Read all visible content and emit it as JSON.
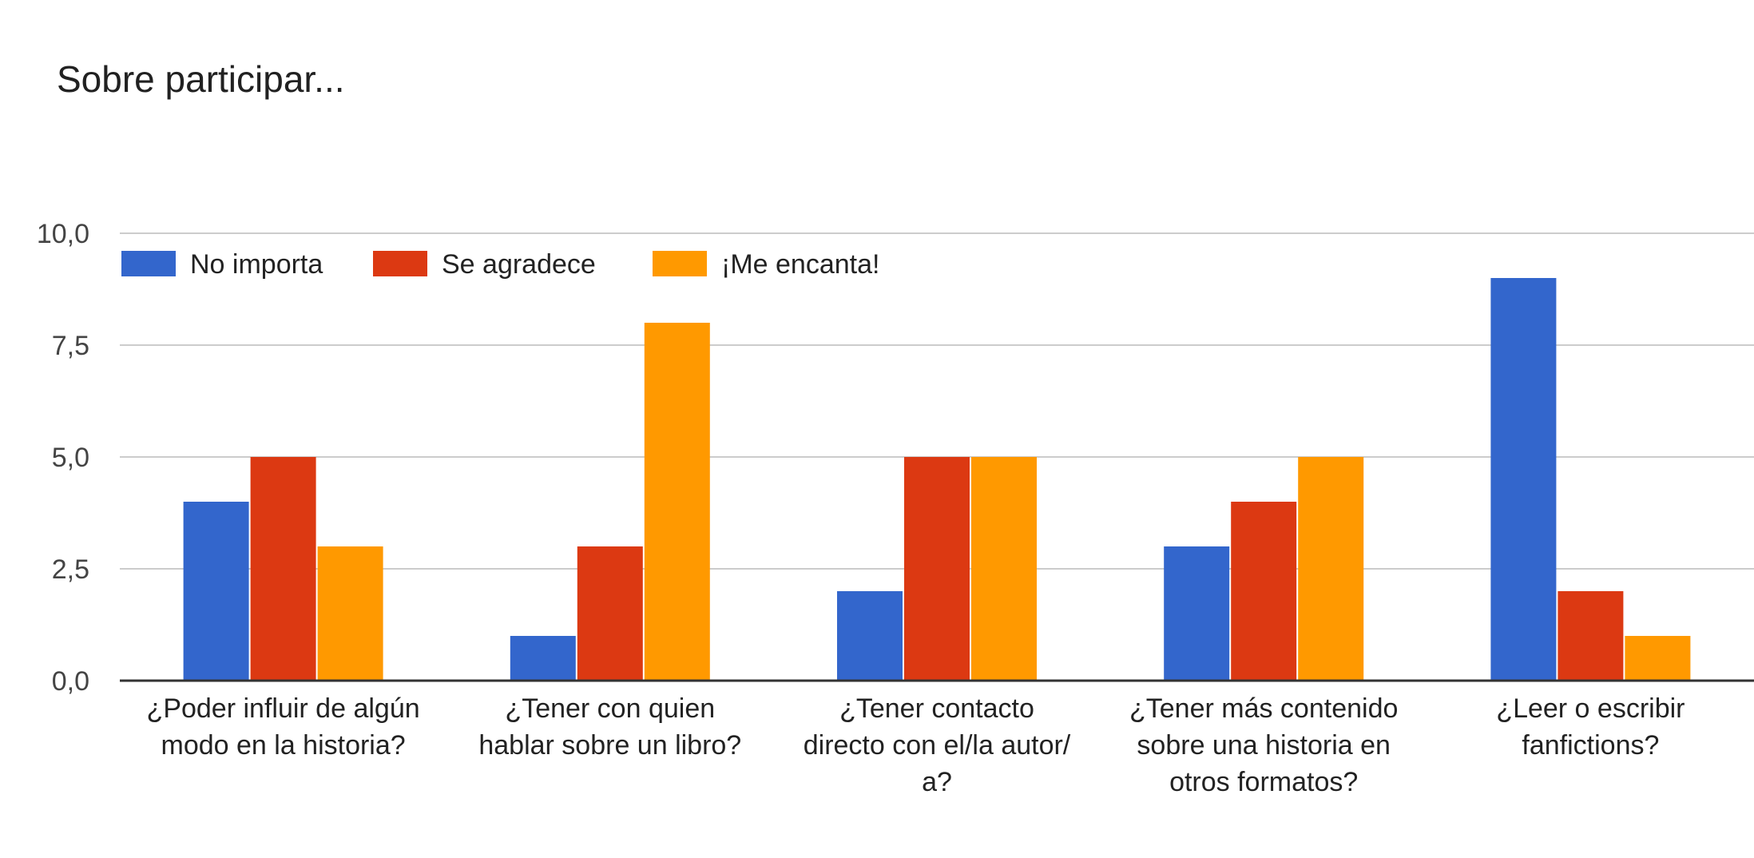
{
  "chart_data": {
    "type": "bar",
    "title": "Sobre participar...",
    "categories": [
      [
        "¿Poder influir de algún",
        "modo en la historia?"
      ],
      [
        "¿Tener con quien",
        "hablar sobre un libro?"
      ],
      [
        "¿Tener contacto",
        "directo con el/la autor/",
        "a?"
      ],
      [
        "¿Tener más contenido",
        "sobre una historia en",
        "otros formatos?"
      ],
      [
        "¿Leer o escribir",
        "fanfictions?"
      ]
    ],
    "series": [
      {
        "name": "No importa",
        "color": "#3366cc",
        "values": [
          4,
          1,
          2,
          3,
          9
        ]
      },
      {
        "name": "Se agradece",
        "color": "#dc3912",
        "values": [
          5,
          3,
          5,
          4,
          2
        ]
      },
      {
        "name": "¡Me encanta!",
        "color": "#ff9900",
        "values": [
          3,
          8,
          5,
          5,
          1
        ]
      }
    ],
    "ylim": [
      0,
      10
    ],
    "yticks": [
      "0,0",
      "2,5",
      "5,0",
      "7,5",
      "10,0"
    ],
    "ytick_values": [
      0,
      2.5,
      5,
      7.5,
      10
    ],
    "grid": true,
    "legend_position": "top-left"
  }
}
